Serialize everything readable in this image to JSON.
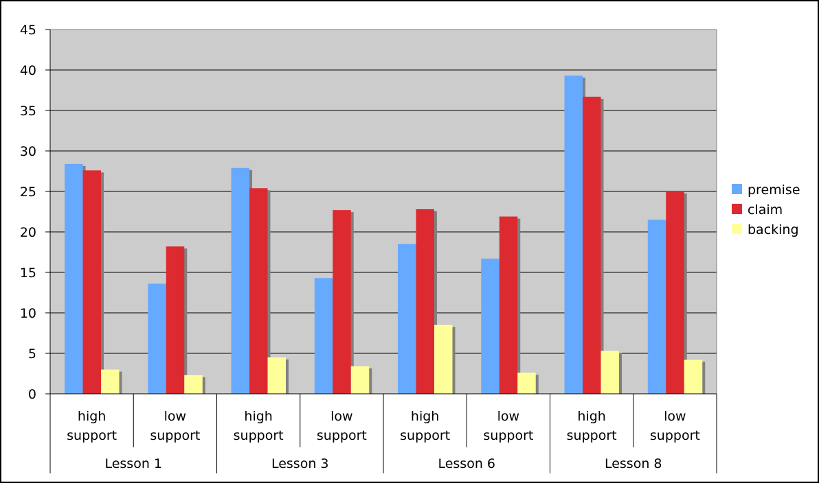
{
  "chart_data": {
    "type": "bar",
    "groups": [
      {
        "label": "Lesson 1",
        "categories": [
          [
            "high",
            "support"
          ],
          [
            "low",
            "support"
          ]
        ]
      },
      {
        "label": "Lesson 3",
        "categories": [
          [
            "high",
            "support"
          ],
          [
            "low",
            "support"
          ]
        ]
      },
      {
        "label": "Lesson 6",
        "categories": [
          [
            "high",
            "support"
          ],
          [
            "low",
            "support"
          ]
        ]
      },
      {
        "label": "Lesson 8",
        "categories": [
          [
            "high",
            "support"
          ],
          [
            "low",
            "support"
          ]
        ]
      }
    ],
    "series": [
      {
        "name": "premise",
        "color": "#66aaff",
        "values": [
          28.4,
          13.6,
          27.9,
          14.3,
          18.5,
          16.7,
          39.3,
          21.5
        ]
      },
      {
        "name": "claim",
        "color": "#dd2a30",
        "values": [
          27.6,
          18.2,
          25.4,
          22.7,
          22.8,
          21.9,
          36.7,
          25.0
        ]
      },
      {
        "name": "backing",
        "color": "#ffff99",
        "values": [
          3.0,
          2.3,
          4.5,
          3.4,
          8.5,
          2.6,
          5.3,
          4.2
        ]
      }
    ],
    "ylim": [
      0,
      45
    ],
    "yticks": [
      0,
      5,
      10,
      15,
      20,
      25,
      30,
      35,
      40,
      45
    ],
    "grid": true,
    "plot_background": "#cccccc",
    "shadow_color": "#808080",
    "legend_position": "right",
    "title": "",
    "xlabel": "",
    "ylabel": ""
  }
}
